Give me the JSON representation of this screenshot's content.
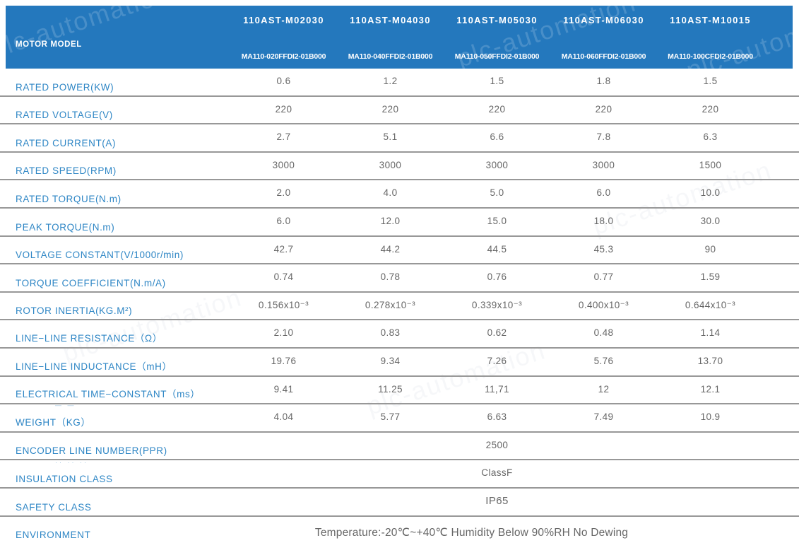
{
  "watermark_text": "plc-automation",
  "header": {
    "label": "MOTOR MODEL",
    "columns": [
      {
        "model": "110AST-M02030",
        "part": "MA110-020FFDI2-01B000"
      },
      {
        "model": "110AST-M04030",
        "part": "MA110-040FFDI2-01B000"
      },
      {
        "model": "110AST-M05030",
        "part": "MA110-050FFDI2-01B000"
      },
      {
        "model": "110AST-M06030",
        "part": "MA110-060FFDI2-01B000"
      },
      {
        "model": "110AST-M10015",
        "part": "MA110-100CFDI2-01B000"
      }
    ]
  },
  "rows": [
    {
      "label": "RATED POWER(KW)",
      "values": [
        "0.6",
        "1.2",
        "1.5",
        "1.8",
        "1.5"
      ]
    },
    {
      "label": "RATED VOLTAGE(V)",
      "values": [
        "220",
        "220",
        "220",
        "220",
        "220"
      ]
    },
    {
      "label": "RATED CURRENT(A)",
      "values": [
        "2.7",
        "5.1",
        "6.6",
        "7.8",
        "6.3"
      ]
    },
    {
      "label": "RATED SPEED(RPM)",
      "values": [
        "3000",
        "3000",
        "3000",
        "3000",
        "1500"
      ]
    },
    {
      "label": "RATED TORQUE(N.m)",
      "values": [
        "2.0",
        "4.0",
        "5.0",
        "6.0",
        "10.0"
      ]
    },
    {
      "label": "PEAK TORQUE(N.m)",
      "values": [
        "6.0",
        "12.0",
        "15.0",
        "18.0",
        "30.0"
      ]
    },
    {
      "label": "VOLTAGE CONSTANT(V/1000r/min)",
      "values": [
        "42.7",
        "44.2",
        "44.5",
        "45.3",
        "90"
      ]
    },
    {
      "label": "TORQUE COEFFICIENT(N.m/A)",
      "values": [
        "0.74",
        "0.78",
        "0.76",
        "0.77",
        "1.59"
      ]
    },
    {
      "label": "ROTOR INERTIA(KG.M²)",
      "values": [
        "0.156x10⁻³",
        "0.278x10⁻³",
        "0.339x10⁻³",
        "0.400x10⁻³",
        "0.644x10⁻³"
      ]
    },
    {
      "label": "LINE−LINE RESISTANCE（Ω）",
      "values": [
        "2.10",
        "0.83",
        "0.62",
        "0.48",
        "1.14"
      ]
    },
    {
      "label": "LINE−LINE INDUCTANCE（mH）",
      "values": [
        "19.76",
        "9.34",
        "7.26",
        "5.76",
        "13.70"
      ]
    },
    {
      "label": "ELECTRICAL TIME−CONSTANT（ms）",
      "values": [
        "9.41",
        "11.25",
        "11,71",
        "12",
        "12.1"
      ]
    },
    {
      "label": "WEIGHT（KG）",
      "values": [
        "4.04",
        "5.77",
        "6.63",
        "7.49",
        "10.9"
      ]
    },
    {
      "label": "ENCODER LINE NUMBER(PPR)",
      "span_value": "2500"
    },
    {
      "label": "INSULATION CLASS",
      "span_value": "ClassF"
    },
    {
      "label": "SAFETY CLASS",
      "span_value": "IP65",
      "variant": "large"
    },
    {
      "label": "ENVIRONMENT",
      "span_value": "Temperature:-20℃~+40℃  Humidity Below 90%RH No Dewing",
      "variant": "env"
    }
  ],
  "artifacts": {
    "dashes": "— —",
    "dots": "·· ·· ··"
  },
  "colors": {
    "header_bg": "#2478BD",
    "header_text": "#FFFFFF",
    "label_blue": "#2E86C5",
    "value_gray": "#666666",
    "border_gray": "#989898"
  }
}
